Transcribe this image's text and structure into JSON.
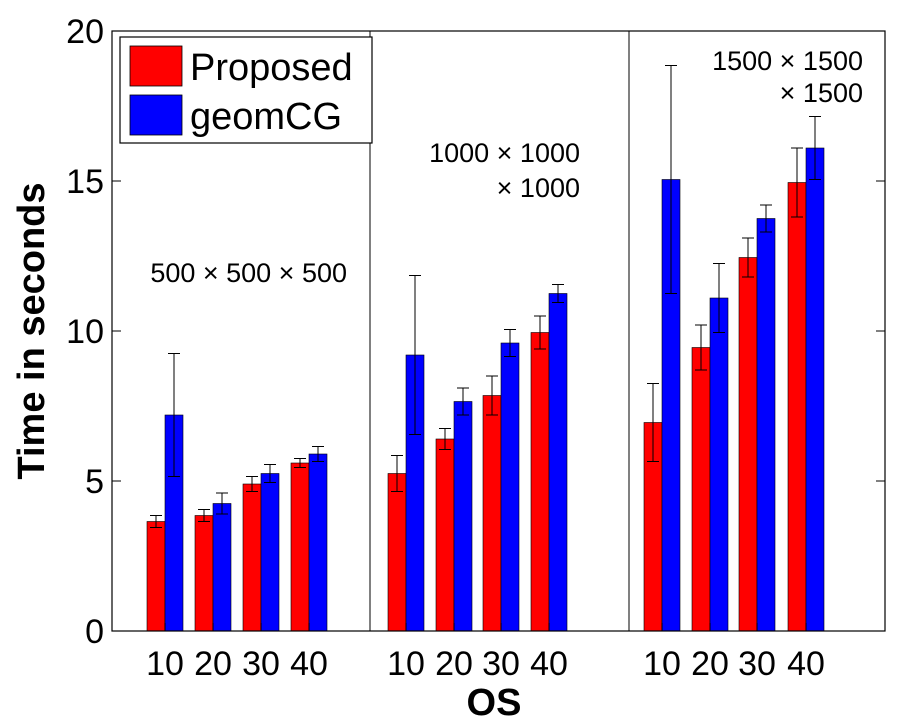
{
  "chart_data": {
    "type": "bar",
    "title": "",
    "xlabel": "OS",
    "ylabel": "Time in seconds",
    "ylim": [
      0,
      20
    ],
    "yticks": [
      0,
      5,
      10,
      15,
      20
    ],
    "categories": [
      "10",
      "20",
      "30",
      "40",
      "10",
      "20",
      "30",
      "40",
      "10",
      "20",
      "30",
      "40"
    ],
    "series": [
      {
        "name": "Proposed",
        "color": "#ff0000",
        "values": [
          3.65,
          3.85,
          4.9,
          5.6,
          5.25,
          6.4,
          7.85,
          9.95,
          6.95,
          9.45,
          12.45,
          14.95
        ],
        "errors": [
          0.2,
          0.2,
          0.25,
          0.15,
          0.6,
          0.35,
          0.65,
          0.55,
          1.3,
          0.75,
          0.65,
          1.15
        ]
      },
      {
        "name": "geomCG",
        "color": "#0000ff",
        "values": [
          7.2,
          4.25,
          5.25,
          5.9,
          9.2,
          7.65,
          9.6,
          11.25,
          15.05,
          11.1,
          13.75,
          16.1
        ],
        "errors": [
          2.05,
          0.35,
          0.3,
          0.25,
          2.65,
          0.45,
          0.45,
          0.3,
          3.8,
          1.15,
          0.45,
          1.05
        ]
      }
    ],
    "legend": {
      "position": "top-left",
      "entries": [
        "Proposed",
        "geomCG"
      ]
    },
    "groups": [
      {
        "annotation_lines": [
          "500 × 500 × 500"
        ]
      },
      {
        "annotation_lines": [
          "1000 × 1000",
          "× 1000"
        ]
      },
      {
        "annotation_lines": [
          "1500 × 1500",
          "× 1500"
        ]
      }
    ],
    "grid": false
  }
}
